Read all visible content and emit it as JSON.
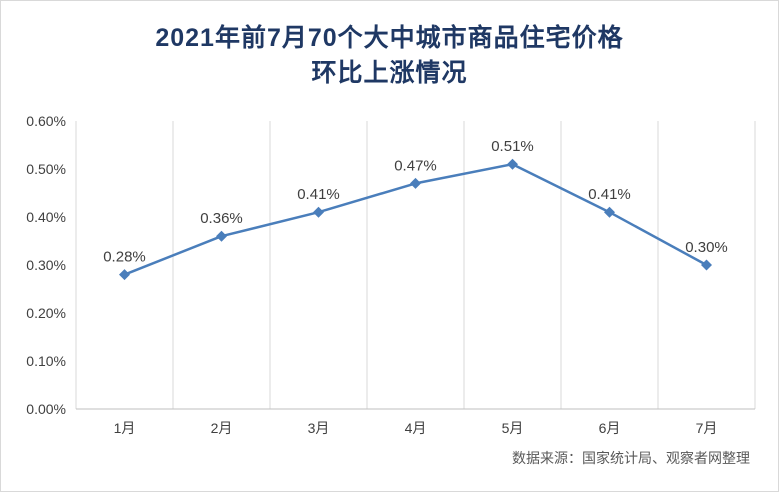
{
  "chart_data": {
    "type": "line",
    "title": "2021年前7月70个大中城市商品住宅价格环比上涨情况",
    "title_lines": [
      "2021年前7月70个大中城市商品住宅价格",
      "环比上涨情况"
    ],
    "categories": [
      "1月",
      "2月",
      "3月",
      "4月",
      "5月",
      "6月",
      "7月"
    ],
    "values": [
      0.28,
      0.36,
      0.41,
      0.47,
      0.51,
      0.41,
      0.3
    ],
    "data_labels": [
      "0.28%",
      "0.36%",
      "0.41%",
      "0.47%",
      "0.51%",
      "0.41%",
      "0.30%"
    ],
    "y_ticks": [
      "0.60%",
      "0.50%",
      "0.40%",
      "0.30%",
      "0.20%",
      "0.10%",
      "0.00%"
    ],
    "ylim": [
      0,
      0.6
    ],
    "xlabel": "",
    "ylabel": "",
    "grid": "vertical-only",
    "legend": "none",
    "marker": "diamond",
    "line_color": "#4a7ebb",
    "title_color": "#1f3864",
    "tick_color": "#404040",
    "gridline_color": "#d9d9d9",
    "axis_color": "#bfbfbf",
    "source_note": "数据来源：国家统计局、观察者网整理"
  }
}
